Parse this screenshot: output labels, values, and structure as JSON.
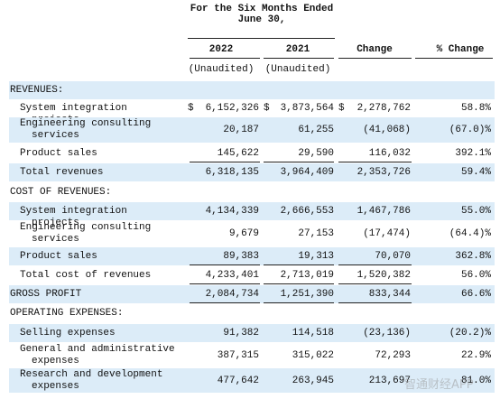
{
  "header": {
    "period": "For the Six Months Ended June 30,",
    "columns": [
      "2022",
      "2021",
      "Change",
      "% Change"
    ],
    "unaudited": [
      "(Unaudited)",
      "(Unaudited)"
    ]
  },
  "table": {
    "rows": [
      {
        "label": "REVENUES:"
      },
      {
        "label": "System integration projects",
        "currency": [
          "$",
          "$",
          "$"
        ],
        "values": [
          "6,152,326",
          "3,873,564",
          "2,278,762",
          "58.8%"
        ]
      },
      {
        "label": "Engineering consulting services",
        "values": [
          "20,187",
          "61,255",
          "(41,068)",
          "(67.0)%"
        ]
      },
      {
        "label": "Product sales",
        "values": [
          "145,622",
          "29,590",
          "116,032",
          "392.1%"
        ]
      },
      {
        "label": "Total revenues",
        "values": [
          "6,318,135",
          "3,964,409",
          "2,353,726",
          "59.4%"
        ]
      },
      {
        "label": "COST OF REVENUES:"
      },
      {
        "label": "System integration projects",
        "values": [
          "4,134,339",
          "2,666,553",
          "1,467,786",
          "55.0%"
        ]
      },
      {
        "label": "Engineering consulting services",
        "values": [
          "9,679",
          "27,153",
          "(17,474)",
          "(64.4)%"
        ]
      },
      {
        "label": "Product sales",
        "values": [
          "89,383",
          "19,313",
          "70,070",
          "362.8%"
        ]
      },
      {
        "label": "Total cost of revenues",
        "values": [
          "4,233,401",
          "2,713,019",
          "1,520,382",
          "56.0%"
        ]
      },
      {
        "label": "GROSS PROFIT",
        "values": [
          "2,084,734",
          "1,251,390",
          "833,344",
          "66.6%"
        ]
      },
      {
        "label": "OPERATING EXPENSES:"
      },
      {
        "label": "Selling expenses",
        "values": [
          "91,382",
          "114,518",
          "(23,136)",
          "(20.2)%"
        ]
      },
      {
        "label": "General and administrative expenses",
        "values": [
          "387,315",
          "315,022",
          "72,293",
          "22.9%"
        ]
      },
      {
        "label": "Research and development expenses",
        "values": [
          "477,642",
          "263,945",
          "213,697",
          "81.0%"
        ]
      }
    ]
  },
  "watermark": "智通财经APP"
}
